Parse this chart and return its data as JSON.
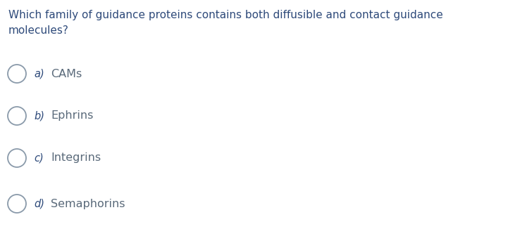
{
  "question_line1": "Which family of guidance proteins contains both diffusible and contact guidance",
  "question_line2": "molecules?",
  "question_color": "#2E4A7A",
  "options": [
    {
      "label": "a)",
      "text": "CAMs"
    },
    {
      "label": "b)",
      "text": "Ephrins"
    },
    {
      "label": "c)",
      "text": "Integrins"
    },
    {
      "label": "d)",
      "text": "Semaphorins"
    }
  ],
  "option_label_color": "#2E4A7A",
  "option_text_color": "#5A6A7A",
  "circle_edgecolor": "#8A9AAA",
  "background_color": "#FFFFFF",
  "question_fontsize": 11.0,
  "option_label_fontsize": 10.5,
  "option_text_fontsize": 11.5
}
